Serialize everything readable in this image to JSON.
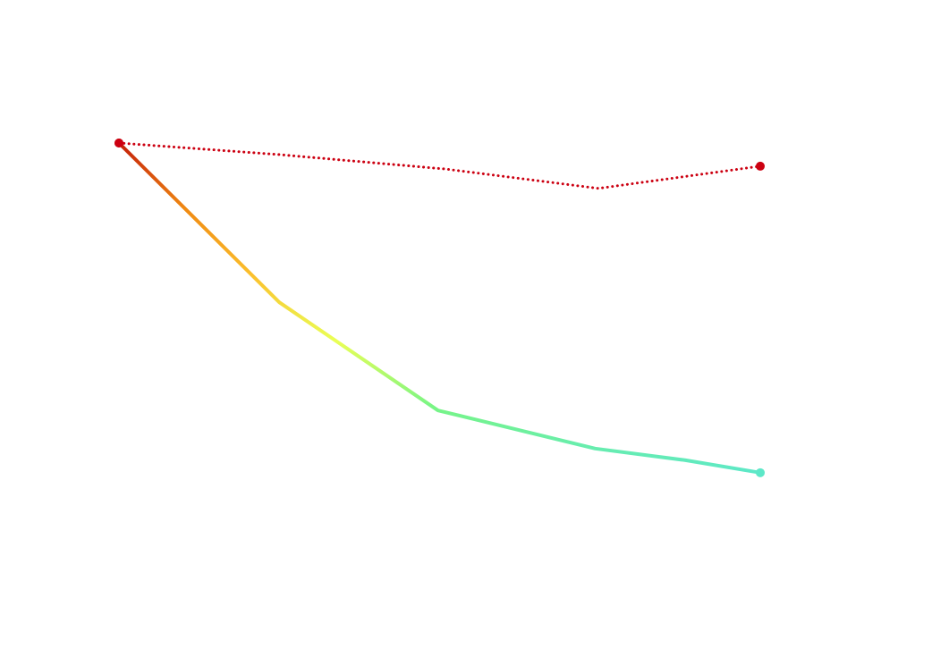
{
  "chart_data": {
    "type": "line",
    "xlim": [
      0,
      4
    ],
    "ylim": [
      0,
      100
    ],
    "series": [
      {
        "x": [
          0,
          1,
          1.99,
          2.97,
          3.53,
          4
        ],
        "values": [
          90,
          57,
          34.6,
          26.7,
          24.3,
          21.7
        ],
        "gradient": [
          "#c41f0a",
          "#f08a12",
          "#fbc02d",
          "#eaff55",
          "#78f585",
          "#5de8c8"
        ],
        "style": "solid",
        "color": "#c41f0a",
        "end_color": "#5de8c8"
      },
      {
        "x": [
          0,
          1,
          2.04,
          2.99,
          4
        ],
        "values": [
          90,
          87.6,
          84.6,
          80.6,
          85.2
        ],
        "color": "#cc0011",
        "style": "dotted"
      }
    ]
  }
}
